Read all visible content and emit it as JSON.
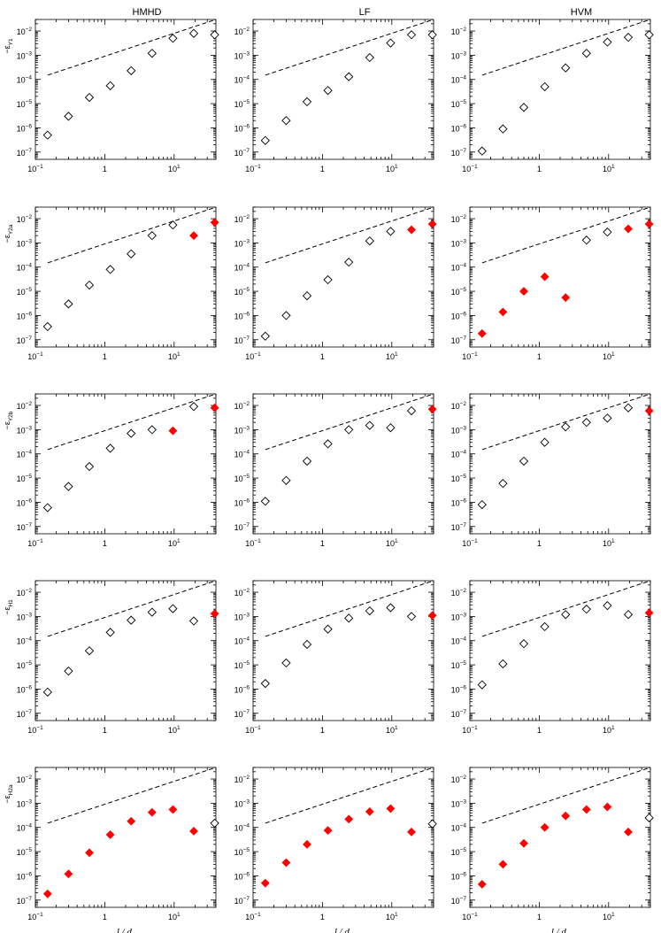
{
  "columns": [
    "HMHD",
    "LF",
    "HVM"
  ],
  "row_labels": [
    {
      "base": "−ε",
      "sub": "Y1"
    },
    {
      "base": "−ε",
      "sub": "Y2a"
    },
    {
      "base": "−ε",
      "sub": "Y2b"
    },
    {
      "base": "−ε",
      "sub": "H1"
    },
    {
      "base": "−ε",
      "sub": "H2a"
    }
  ],
  "x_label": {
    "base": "l / d",
    "sub": "p"
  },
  "tick_labels_x": [
    "10",
    "-1",
    "1",
    "10",
    "1"
  ],
  "chart_data": {
    "type": "scatter",
    "layout": "grid 5 rows x 3 columns",
    "x_scale": "log",
    "y_scale": "log",
    "xlim": [
      0.1,
      40
    ],
    "ylim": [
      5e-08,
      0.03
    ],
    "x_ticks": [
      0.1,
      1,
      10
    ],
    "y_ticks": [
      1e-07,
      1e-06,
      1e-05,
      0.0001,
      0.001,
      0.01
    ],
    "x": [
      0.15,
      0.3,
      0.6,
      1.2,
      2.4,
      4.8,
      9.6,
      19.2,
      38.4
    ],
    "marker_colors": {
      "open": "#000000",
      "filled": "#ff0000"
    },
    "reference_line": {
      "style": "dashed",
      "x": [
        0.15,
        40
      ],
      "y": [
        0.00015,
        0.03
      ]
    },
    "panels": [
      {
        "row": 0,
        "col": 0,
        "values": [
          5e-07,
          3e-06,
          1.8e-05,
          5.5e-05,
          0.00023,
          0.0012,
          0.005,
          0.008,
          0.007
        ],
        "filled": [
          0,
          0,
          0,
          0,
          0,
          0,
          0,
          0,
          0
        ]
      },
      {
        "row": 0,
        "col": 1,
        "values": [
          3e-07,
          2e-06,
          1.2e-05,
          3.5e-05,
          0.00013,
          0.0008,
          0.0032,
          0.007,
          0.007
        ],
        "filled": [
          0,
          0,
          0,
          0,
          0,
          0,
          0,
          0,
          0
        ]
      },
      {
        "row": 0,
        "col": 2,
        "values": [
          1.1e-07,
          9e-07,
          7e-06,
          5e-05,
          0.0003,
          0.0012,
          0.0035,
          0.0055,
          0.007
        ],
        "filled": [
          0,
          0,
          0,
          0,
          0,
          0,
          0,
          0,
          0
        ]
      },
      {
        "row": 1,
        "col": 0,
        "values": [
          3.5e-07,
          3e-06,
          1.8e-05,
          8e-05,
          0.00035,
          0.002,
          0.0055,
          0.002,
          0.007
        ],
        "filled": [
          0,
          0,
          0,
          0,
          0,
          0,
          0,
          1,
          1
        ]
      },
      {
        "row": 1,
        "col": 1,
        "values": [
          1.4e-07,
          1e-06,
          6.5e-06,
          3e-05,
          0.00016,
          0.0012,
          0.003,
          0.0035,
          0.006
        ],
        "filled": [
          0,
          0,
          0,
          0,
          0,
          0,
          0,
          1,
          1
        ]
      },
      {
        "row": 1,
        "col": 2,
        "values": [
          1.8e-07,
          1.4e-06,
          1e-05,
          4e-05,
          5.5e-06,
          0.0013,
          0.0028,
          0.0038,
          0.006
        ],
        "filled": [
          1,
          1,
          1,
          1,
          1,
          0,
          0,
          1,
          1
        ]
      },
      {
        "row": 2,
        "col": 0,
        "values": [
          6e-07,
          4.5e-06,
          3e-05,
          0.00017,
          0.0007,
          0.001,
          0.0009,
          0.009,
          0.008
        ],
        "filled": [
          0,
          0,
          0,
          0,
          0,
          0,
          1,
          0,
          1
        ]
      },
      {
        "row": 2,
        "col": 1,
        "values": [
          1.1e-06,
          8e-06,
          5e-05,
          0.00026,
          0.001,
          0.0015,
          0.0012,
          0.006,
          0.007
        ],
        "filled": [
          0,
          0,
          0,
          0,
          0,
          0,
          0,
          0,
          1
        ]
      },
      {
        "row": 2,
        "col": 2,
        "values": [
          8e-07,
          6e-06,
          5e-05,
          0.0003,
          0.0013,
          0.002,
          0.003,
          0.008,
          0.006
        ],
        "filled": [
          0,
          0,
          0,
          0,
          0,
          0,
          0,
          0,
          1
        ]
      },
      {
        "row": 3,
        "col": 0,
        "values": [
          7.5e-07,
          5.5e-06,
          3.8e-05,
          0.00022,
          0.0007,
          0.0015,
          0.0021,
          0.00065,
          0.0013
        ],
        "filled": [
          0,
          0,
          0,
          0,
          0,
          0,
          0,
          0,
          1
        ]
      },
      {
        "row": 3,
        "col": 1,
        "values": [
          1.7e-06,
          1.2e-05,
          7e-05,
          0.0003,
          0.00085,
          0.0017,
          0.0023,
          0.001,
          0.0011
        ],
        "filled": [
          0,
          0,
          0,
          0,
          0,
          0,
          0,
          0,
          1
        ]
      },
      {
        "row": 3,
        "col": 2,
        "values": [
          1.5e-06,
          1.1e-05,
          7.5e-05,
          0.00038,
          0.0012,
          0.002,
          0.0028,
          0.0012,
          0.0014
        ],
        "filled": [
          0,
          0,
          0,
          0,
          0,
          0,
          0,
          0,
          1
        ]
      },
      {
        "row": 4,
        "col": 0,
        "values": [
          1.8e-07,
          1.2e-06,
          9e-06,
          5e-05,
          0.00018,
          0.00042,
          0.00055,
          7e-05,
          0.00015
        ],
        "filled": [
          1,
          1,
          1,
          1,
          1,
          1,
          1,
          1,
          0
        ]
      },
      {
        "row": 4,
        "col": 1,
        "values": [
          5e-07,
          3.5e-06,
          2e-05,
          7.5e-05,
          0.00022,
          0.00045,
          0.0006,
          6.5e-05,
          0.00014
        ],
        "filled": [
          1,
          1,
          1,
          1,
          1,
          1,
          1,
          1,
          0
        ]
      },
      {
        "row": 4,
        "col": 2,
        "values": [
          4.5e-07,
          3e-06,
          2.2e-05,
          0.0001,
          0.0003,
          0.00055,
          0.0007,
          6.5e-05,
          0.00025
        ],
        "filled": [
          1,
          1,
          1,
          1,
          1,
          1,
          1,
          1,
          0
        ]
      }
    ]
  }
}
